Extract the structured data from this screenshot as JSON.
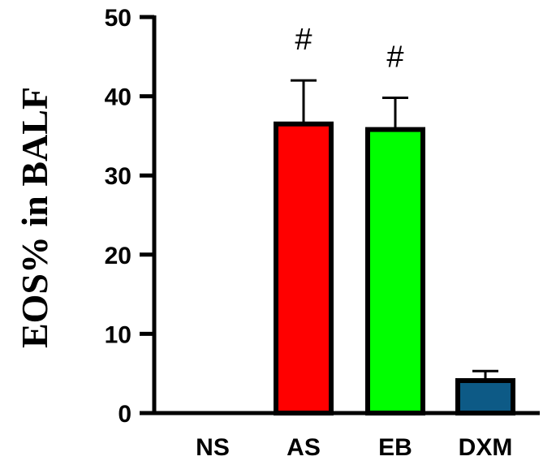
{
  "chart_data": {
    "type": "bar",
    "categories": [
      "NS",
      "AS",
      "EB",
      "DXM"
    ],
    "values": [
      0,
      36.5,
      35.8,
      4.1
    ],
    "errors": [
      0,
      5.5,
      4.0,
      1.2
    ],
    "annotations": [
      "",
      "#",
      "#",
      ""
    ],
    "colors": [
      "#ffffff",
      "#ff0000",
      "#00ff00",
      "#0d5a86"
    ],
    "ylabel": "EOS% in BALF",
    "xlabel": "",
    "ylim": [
      0,
      50
    ],
    "yticks": [
      0,
      10,
      20,
      30,
      40,
      50
    ],
    "grid": false,
    "legend": "none"
  }
}
